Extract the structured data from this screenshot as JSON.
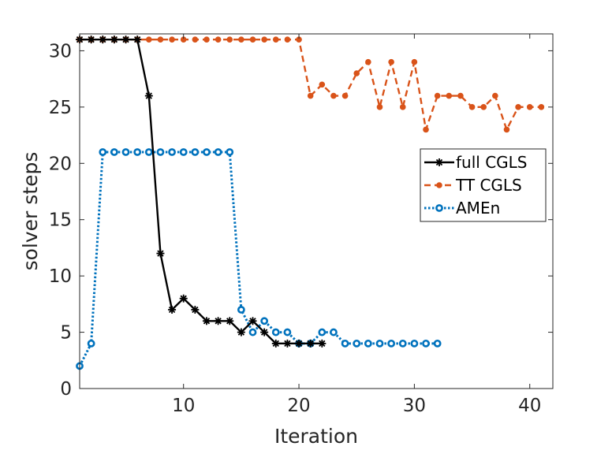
{
  "chart_data": {
    "type": "line",
    "title": "",
    "xlabel": "Iteration",
    "ylabel": "solver steps",
    "xlim": [
      1,
      42
    ],
    "ylim": [
      0,
      31.5
    ],
    "xticks": [
      10,
      20,
      30,
      40
    ],
    "yticks": [
      0,
      5,
      10,
      15,
      20,
      25,
      30
    ],
    "legend_position": "right",
    "series": [
      {
        "name": "full CGLS",
        "color": "#000000",
        "line": "solid",
        "marker": "asterisk",
        "x": [
          1,
          2,
          3,
          4,
          5,
          6,
          7,
          8,
          9,
          10,
          11,
          12,
          13,
          14,
          15,
          16,
          17,
          18,
          19,
          20,
          21,
          22
        ],
        "y": [
          31,
          31,
          31,
          31,
          31,
          31,
          26,
          12,
          7,
          8,
          7,
          6,
          6,
          6,
          5,
          6,
          5,
          4,
          4,
          4,
          4,
          4
        ]
      },
      {
        "name": "TT CGLS",
        "color": "#D95319",
        "line": "dashed",
        "marker": "dot",
        "x": [
          1,
          2,
          3,
          4,
          5,
          6,
          7,
          8,
          9,
          10,
          11,
          12,
          13,
          14,
          15,
          16,
          17,
          18,
          19,
          20,
          21,
          22,
          23,
          24,
          25,
          26,
          27,
          28,
          29,
          30,
          31,
          32,
          33,
          34,
          35,
          36,
          37,
          38,
          39,
          40,
          41
        ],
        "y": [
          31,
          31,
          31,
          31,
          31,
          31,
          31,
          31,
          31,
          31,
          31,
          31,
          31,
          31,
          31,
          31,
          31,
          31,
          31,
          31,
          26,
          27,
          26,
          26,
          28,
          29,
          25,
          29,
          25,
          29,
          23,
          26,
          26,
          26,
          25,
          25,
          26,
          23,
          25,
          25,
          25
        ]
      },
      {
        "name": "AMEn",
        "color": "#0072BD",
        "line": "dotted",
        "marker": "circle",
        "x": [
          1,
          2,
          3,
          4,
          5,
          6,
          7,
          8,
          9,
          10,
          11,
          12,
          13,
          14,
          15,
          16,
          17,
          18,
          19,
          20,
          21,
          22,
          23,
          24,
          25,
          26,
          27,
          28,
          29,
          30,
          31,
          32
        ],
        "y": [
          2,
          4,
          21,
          21,
          21,
          21,
          21,
          21,
          21,
          21,
          21,
          21,
          21,
          21,
          7,
          5,
          6,
          5,
          5,
          4,
          4,
          5,
          5,
          4,
          4,
          4,
          4,
          4,
          4,
          4,
          4,
          4
        ]
      }
    ]
  }
}
